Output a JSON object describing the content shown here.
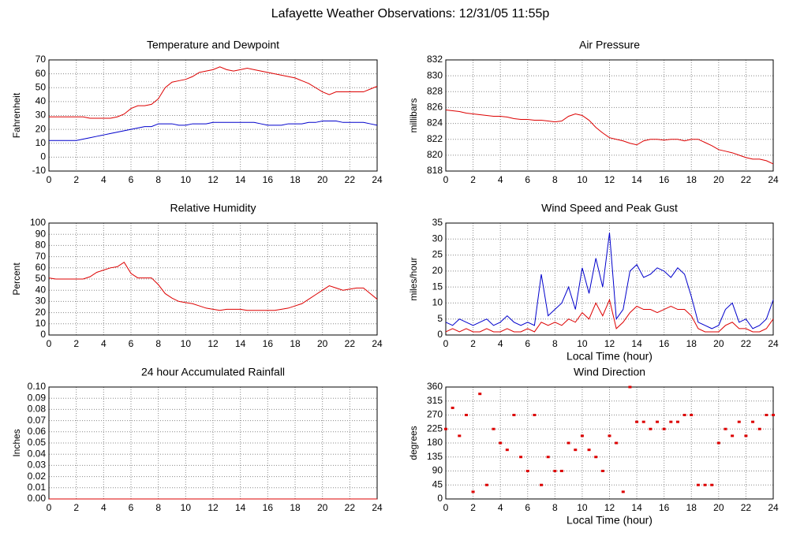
{
  "title": "Lafayette Weather Observations: 12/31/05 11:55p",
  "chart_data": [
    {
      "type": "line",
      "title": "Temperature and Dewpoint",
      "ylabel": "Fahrenheit",
      "grid": true,
      "xlim": [
        0,
        24
      ],
      "xticks": [
        0,
        2,
        4,
        6,
        8,
        10,
        12,
        14,
        16,
        18,
        20,
        22,
        24
      ],
      "ylim": [
        -10,
        70
      ],
      "yticks": [
        -10,
        0,
        10,
        20,
        30,
        40,
        50,
        60,
        70
      ],
      "x": [
        0,
        0.5,
        1,
        1.5,
        2,
        2.5,
        3,
        3.5,
        4,
        4.5,
        5,
        5.5,
        6,
        6.5,
        7,
        7.5,
        8,
        8.5,
        9,
        9.5,
        10,
        10.5,
        11,
        11.5,
        12,
        12.5,
        13,
        13.5,
        14,
        14.5,
        15,
        15.5,
        16,
        16.5,
        17,
        17.5,
        18,
        18.5,
        19,
        19.5,
        20,
        20.5,
        21,
        21.5,
        22,
        22.5,
        23,
        23.5,
        24
      ],
      "series": [
        {
          "color": "#dd0000",
          "values": [
            29,
            29,
            29,
            29,
            29,
            29,
            28,
            28,
            28,
            28,
            29,
            31,
            35,
            37,
            37,
            38,
            42,
            50,
            54,
            55,
            56,
            58,
            61,
            62,
            63,
            65,
            63,
            62,
            63,
            64,
            63,
            62,
            61,
            60,
            59,
            58,
            57,
            55,
            53,
            50,
            47,
            45,
            47,
            47,
            47,
            47,
            47,
            49,
            51
          ]
        },
        {
          "color": "#0000cc",
          "values": [
            12,
            12,
            12,
            12,
            12,
            13,
            14,
            15,
            16,
            17,
            18,
            19,
            20,
            21,
            22,
            22,
            24,
            24,
            24,
            23,
            23,
            24,
            24,
            24,
            25,
            25,
            25,
            25,
            25,
            25,
            25,
            24,
            23,
            23,
            23,
            24,
            24,
            24,
            25,
            25,
            26,
            26,
            26,
            25,
            25,
            25,
            25,
            24,
            23
          ]
        }
      ]
    },
    {
      "type": "line",
      "title": "Air Pressure",
      "ylabel": "millibars",
      "grid": true,
      "xlim": [
        0,
        24
      ],
      "xticks": [
        0,
        2,
        4,
        6,
        8,
        10,
        12,
        14,
        16,
        18,
        20,
        22,
        24
      ],
      "ylim": [
        818,
        832
      ],
      "yticks": [
        818,
        820,
        822,
        824,
        826,
        828,
        830,
        832
      ],
      "x": [
        0,
        0.5,
        1,
        1.5,
        2,
        2.5,
        3,
        3.5,
        4,
        4.5,
        5,
        5.5,
        6,
        6.5,
        7,
        7.5,
        8,
        8.5,
        9,
        9.5,
        10,
        10.5,
        11,
        11.5,
        12,
        12.5,
        13,
        13.5,
        14,
        14.5,
        15,
        15.5,
        16,
        16.5,
        17,
        17.5,
        18,
        18.5,
        19,
        19.5,
        20,
        20.5,
        21,
        21.5,
        22,
        22.5,
        23,
        23.5,
        24
      ],
      "series": [
        {
          "color": "#dd0000",
          "values": [
            825.7,
            825.6,
            825.5,
            825.3,
            825.2,
            825.1,
            825.0,
            824.9,
            824.9,
            824.8,
            824.6,
            824.5,
            824.5,
            824.4,
            824.4,
            824.3,
            824.2,
            824.3,
            824.9,
            825.2,
            825.0,
            824.4,
            823.5,
            822.8,
            822.2,
            822.0,
            821.8,
            821.5,
            821.3,
            821.8,
            822.0,
            822.0,
            821.9,
            822.0,
            822.0,
            821.8,
            822.0,
            822.0,
            821.6,
            821.2,
            820.7,
            820.5,
            820.3,
            820.0,
            819.7,
            819.5,
            819.5,
            819.3,
            818.9
          ]
        }
      ]
    },
    {
      "type": "line",
      "title": "Relative Humidity",
      "ylabel": "Percent",
      "grid": true,
      "xlim": [
        0,
        24
      ],
      "xticks": [
        0,
        2,
        4,
        6,
        8,
        10,
        12,
        14,
        16,
        18,
        20,
        22,
        24
      ],
      "ylim": [
        0,
        100
      ],
      "yticks": [
        0,
        10,
        20,
        30,
        40,
        50,
        60,
        70,
        80,
        90,
        100
      ],
      "x": [
        0,
        0.5,
        1,
        1.5,
        2,
        2.5,
        3,
        3.5,
        4,
        4.5,
        5,
        5.5,
        6,
        6.5,
        7,
        7.5,
        8,
        8.5,
        9,
        9.5,
        10,
        10.5,
        11,
        11.5,
        12,
        12.5,
        13,
        13.5,
        14,
        14.5,
        15,
        15.5,
        16,
        16.5,
        17,
        17.5,
        18,
        18.5,
        19,
        19.5,
        20,
        20.5,
        21,
        21.5,
        22,
        22.5,
        23,
        23.5,
        24
      ],
      "series": [
        {
          "color": "#dd0000",
          "values": [
            51,
            50,
            50,
            50,
            50,
            50,
            52,
            56,
            58,
            60,
            61,
            65,
            55,
            51,
            51,
            51,
            45,
            37,
            33,
            30,
            29,
            28,
            26,
            24,
            23,
            22,
            23,
            23,
            23,
            22,
            22,
            22,
            22,
            22,
            23,
            24,
            26,
            28,
            32,
            36,
            40,
            44,
            42,
            40,
            41,
            42,
            42,
            37,
            32
          ]
        }
      ]
    },
    {
      "type": "line",
      "title": "Wind Speed and Peak Gust",
      "ylabel": "miles/hour",
      "xlabel": "Local Time (hour)",
      "grid": true,
      "xlim": [
        0,
        24
      ],
      "xticks": [
        0,
        2,
        4,
        6,
        8,
        10,
        12,
        14,
        16,
        18,
        20,
        22,
        24
      ],
      "ylim": [
        0,
        35
      ],
      "yticks": [
        0,
        5,
        10,
        15,
        20,
        25,
        30,
        35
      ],
      "x": [
        0,
        0.5,
        1,
        1.5,
        2,
        2.5,
        3,
        3.5,
        4,
        4.5,
        5,
        5.5,
        6,
        6.5,
        7,
        7.5,
        8,
        8.5,
        9,
        9.5,
        10,
        10.5,
        11,
        11.5,
        12,
        12.5,
        13,
        13.5,
        14,
        14.5,
        15,
        15.5,
        16,
        16.5,
        17,
        17.5,
        18,
        18.5,
        19,
        19.5,
        20,
        20.5,
        21,
        21.5,
        22,
        22.5,
        23,
        23.5,
        24
      ],
      "series": [
        {
          "color": "#0000cc",
          "values": [
            4,
            3,
            5,
            4,
            3,
            4,
            5,
            3,
            4,
            6,
            4,
            3,
            4,
            3,
            19,
            6,
            8,
            10,
            15,
            8,
            21,
            13,
            24,
            15,
            32,
            5,
            8,
            20,
            22,
            18,
            19,
            21,
            20,
            18,
            21,
            19,
            12,
            4,
            3,
            2,
            3,
            8,
            10,
            4,
            5,
            2,
            3,
            5,
            11
          ]
        },
        {
          "color": "#dd0000",
          "values": [
            1,
            2,
            1,
            2,
            1,
            1,
            2,
            1,
            1,
            2,
            1,
            1,
            2,
            1,
            4,
            3,
            4,
            3,
            5,
            4,
            7,
            5,
            10,
            6,
            11,
            2,
            4,
            7,
            9,
            8,
            8,
            7,
            8,
            9,
            8,
            8,
            6,
            2,
            1,
            1,
            1,
            3,
            4,
            2,
            2,
            1,
            1,
            2,
            5
          ]
        }
      ]
    },
    {
      "type": "line",
      "title": "24 hour Accumulated Rainfall",
      "ylabel": "Inches",
      "grid": true,
      "xlim": [
        0,
        24
      ],
      "xticks": [
        0,
        2,
        4,
        6,
        8,
        10,
        12,
        14,
        16,
        18,
        20,
        22,
        24
      ],
      "ylim": [
        0,
        0.1
      ],
      "yticks": [
        {
          "value": 0,
          "label": "0.00"
        },
        {
          "value": 0.01,
          "label": "0.01"
        },
        {
          "value": 0.02,
          "label": "0.02"
        },
        {
          "value": 0.03,
          "label": "0.03"
        },
        {
          "value": 0.04,
          "label": "0.04"
        },
        {
          "value": 0.05,
          "label": "0.05"
        },
        {
          "value": 0.06,
          "label": "0.06"
        },
        {
          "value": 0.07,
          "label": "0.07"
        },
        {
          "value": 0.08,
          "label": "0.08"
        },
        {
          "value": 0.09,
          "label": "0.09"
        },
        {
          "value": 0.1,
          "label": "0.10"
        }
      ],
      "x": [
        0,
        24
      ],
      "series": [
        {
          "color": "#dd0000",
          "values": [
            0,
            0
          ]
        }
      ]
    },
    {
      "type": "scatter",
      "title": "Wind Direction",
      "ylabel": "degrees",
      "xlabel": "Local Time (hour)",
      "grid": true,
      "xlim": [
        0,
        24
      ],
      "xticks": [
        0,
        2,
        4,
        6,
        8,
        10,
        12,
        14,
        16,
        18,
        20,
        22,
        24
      ],
      "ylim": [
        0,
        360
      ],
      "yticks": [
        0,
        45,
        90,
        135,
        180,
        225,
        270,
        315,
        360
      ],
      "x": [
        0,
        0.5,
        1,
        1.5,
        2,
        2.5,
        3,
        3.5,
        4,
        4.5,
        5,
        5.5,
        6,
        6.5,
        7,
        7.5,
        8,
        8.5,
        9,
        9.5,
        10,
        10.5,
        11,
        11.5,
        12,
        12.5,
        13,
        13.5,
        14,
        14.5,
        15,
        15.5,
        16,
        16.5,
        17,
        17.5,
        18,
        18.5,
        19,
        19.5,
        20,
        20.5,
        21,
        21.5,
        22,
        22.5,
        23,
        23.5,
        24
      ],
      "series": [
        {
          "color": "#dd0000",
          "values": [
            225,
            293,
            203,
            270,
            23,
            338,
            45,
            225,
            180,
            158,
            270,
            135,
            90,
            270,
            45,
            135,
            90,
            90,
            180,
            158,
            203,
            158,
            135,
            90,
            203,
            180,
            23,
            360,
            248,
            248,
            225,
            248,
            225,
            248,
            248,
            270,
            270,
            45,
            45,
            45,
            180,
            225,
            203,
            248,
            203,
            248,
            225,
            270,
            270
          ]
        }
      ]
    }
  ]
}
